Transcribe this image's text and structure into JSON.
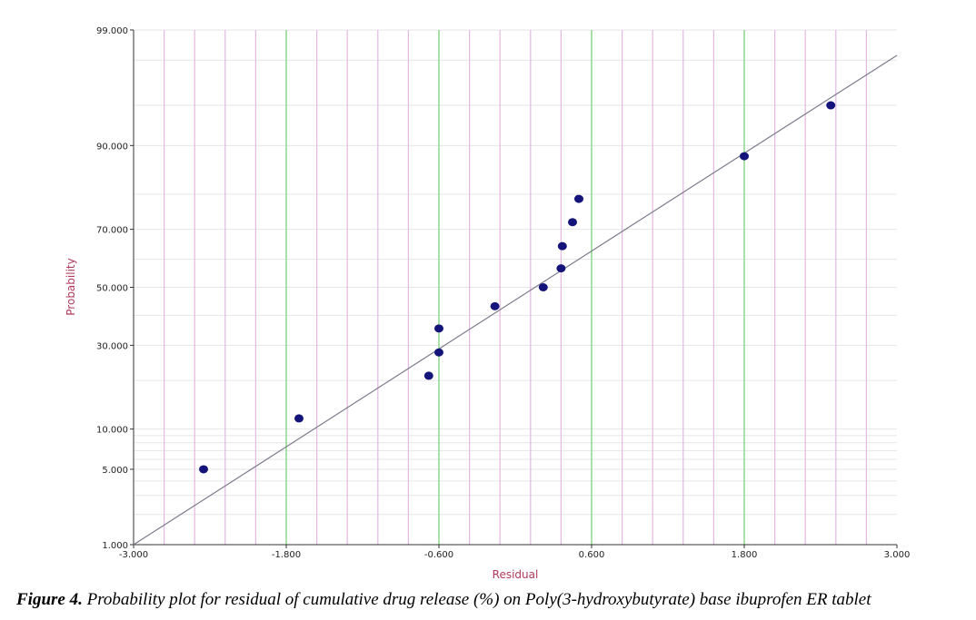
{
  "chart_data": {
    "type": "scatter",
    "scale_y": "normal-probability",
    "xlabel": "Residual",
    "ylabel": "Probability",
    "xlim": [
      -3.0,
      3.0
    ],
    "ylim": [
      1.0,
      99.0
    ],
    "x_ticks": [
      {
        "value": -3.0,
        "label": "-3.000"
      },
      {
        "value": -1.8,
        "label": "-1.800"
      },
      {
        "value": -0.6,
        "label": "-0.600"
      },
      {
        "value": 0.6,
        "label": "0.600"
      },
      {
        "value": 1.8,
        "label": "1.800"
      },
      {
        "value": 3.0,
        "label": "3.000"
      }
    ],
    "y_ticks": [
      {
        "value": 1,
        "label": "1.000"
      },
      {
        "value": 5,
        "label": "5.000"
      },
      {
        "value": 10,
        "label": "10.000"
      },
      {
        "value": 30,
        "label": "30.000"
      },
      {
        "value": 50,
        "label": "50.000"
      },
      {
        "value": 70,
        "label": "70.000"
      },
      {
        "value": 90,
        "label": "90.000"
      },
      {
        "value": 99,
        "label": "99.000"
      }
    ],
    "x_major_grid": [
      -1.8,
      -0.6,
      0.6,
      1.8
    ],
    "x_minor_grid": [
      -2.76,
      -2.52,
      -2.28,
      -2.04,
      -1.56,
      -1.32,
      -1.08,
      -0.84,
      -0.36,
      -0.12,
      0.12,
      0.36,
      0.84,
      1.08,
      1.32,
      1.56,
      2.04,
      2.28,
      2.52,
      2.76
    ],
    "y_minor_grid": [
      2,
      3,
      4,
      6,
      7,
      8,
      9,
      20,
      40,
      60,
      80,
      95,
      98
    ],
    "grid": true,
    "points": [
      {
        "x": -2.45,
        "y": 5.0
      },
      {
        "x": -1.7,
        "y": 11.8
      },
      {
        "x": -0.68,
        "y": 21.2
      },
      {
        "x": -0.6,
        "y": 27.8
      },
      {
        "x": -0.6,
        "y": 35.5
      },
      {
        "x": -0.16,
        "y": 43.2
      },
      {
        "x": 0.22,
        "y": 50.0
      },
      {
        "x": 0.36,
        "y": 56.8
      },
      {
        "x": 0.37,
        "y": 64.5
      },
      {
        "x": 0.45,
        "y": 72.2
      },
      {
        "x": 0.5,
        "y": 78.8
      },
      {
        "x": 1.8,
        "y": 88.2
      },
      {
        "x": 2.48,
        "y": 95.0
      }
    ],
    "fit_line": {
      "x": [
        -3.0,
        3.0
      ],
      "y": [
        1.0,
        98.2
      ]
    },
    "colors": {
      "points": "#14147a",
      "fit_line": "#7a7a8a",
      "major_grid": "#86d386",
      "minor_grid": "#e3b8e3",
      "y_grid": "#e6e6e6",
      "axis": "#333333",
      "axis_title": "#b03a5b"
    }
  },
  "caption": {
    "label": "Figure 4.",
    "text": " Probability plot for residual of cumulative drug release (%) on Poly(3-hydroxybutyrate) base ibuprofen ER tablet"
  }
}
